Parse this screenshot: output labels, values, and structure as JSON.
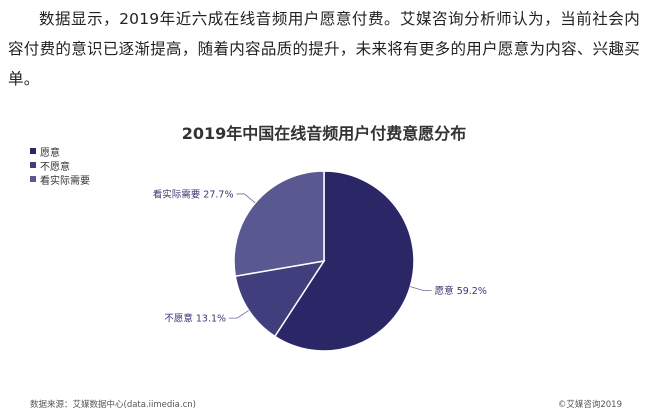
{
  "article": {
    "paragraph": "数据显示，2019年近六成在线音频用户愿意付费。艾媒咨询分析师认为，当前社会内容付费的意识已逐渐提高，随着内容品质的提升，未来将有更多的用户愿意为内容、兴趣买单。"
  },
  "chart_data": {
    "type": "pie",
    "title": "2019年中国在线音频用户付费意愿分布",
    "legend_position": "top-left",
    "slices": [
      {
        "label": "愿意",
        "value": 59.2,
        "value_label": "愿意 59.2%",
        "color": "#2b2766"
      },
      {
        "label": "不愿意",
        "value": 13.1,
        "value_label": "不愿意 13.1%",
        "color": "#403e7d"
      },
      {
        "label": "看实际需要",
        "value": 27.7,
        "value_label": "看实际需要 27.7%",
        "color": "#5a5891"
      }
    ]
  },
  "footer": {
    "source": "数据来源：艾媒数据中心(data.iimedia.cn)",
    "copyright": "©艾媒咨询2019"
  }
}
